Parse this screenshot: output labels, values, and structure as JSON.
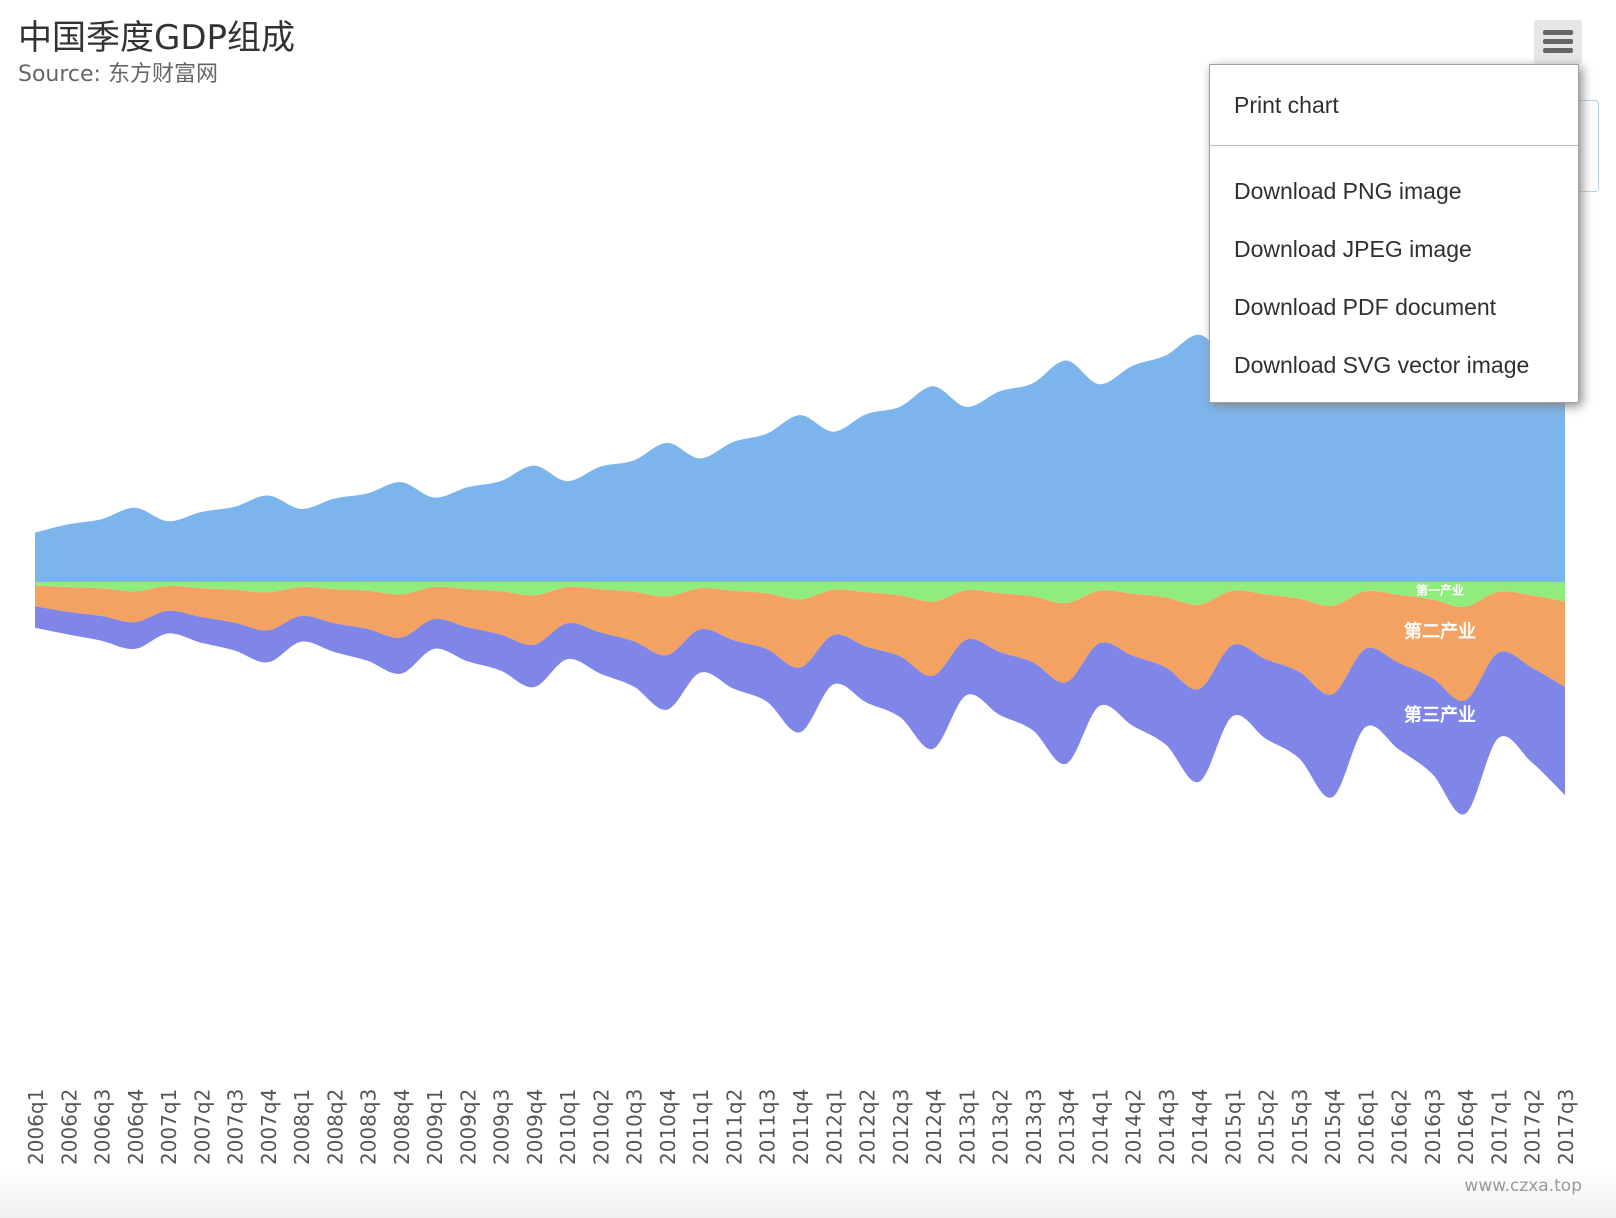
{
  "title": "中国季度GDP组成",
  "subtitle": "Source: 东方财富网",
  "menu": {
    "items": [
      "Print chart",
      "Download PNG image",
      "Download JPEG image",
      "Download PDF document",
      "Download SVG vector image"
    ]
  },
  "credits": "www.czxa.top",
  "colors": {
    "primary": "#7cb5ec",
    "secondary": "#f4a261",
    "tertiary": "#8085e8",
    "quaternary": "#90ed7d"
  },
  "chart_data": {
    "type": "area",
    "subtype": "streamgraph",
    "x": [
      "2006q1",
      "2006q2",
      "2006q3",
      "2006q4",
      "2007q1",
      "2007q2",
      "2007q3",
      "2007q4",
      "2008q1",
      "2008q2",
      "2008q3",
      "2008q4",
      "2009q1",
      "2009q2",
      "2009q3",
      "2009q4",
      "2010q1",
      "2010q2",
      "2010q3",
      "2010q4",
      "2011q1",
      "2011q2",
      "2011q3",
      "2011q4",
      "2012q1",
      "2012q2",
      "2012q3",
      "2012q4",
      "2013q1",
      "2013q2",
      "2013q3",
      "2013q4",
      "2014q1",
      "2014q2",
      "2014q3",
      "2014q4",
      "2015q1",
      "2015q2",
      "2015q3",
      "2015q4",
      "2016q1",
      "2016q2",
      "2016q3",
      "2016q4",
      "2017q1",
      "2017q2",
      "2017q3"
    ],
    "series": [
      {
        "name": "",
        "color": "#7cb5ec",
        "values": [
          48,
          56,
          61,
          72,
          59,
          68,
          73,
          84,
          71,
          81,
          86,
          97,
          82,
          92,
          98,
          113,
          98,
          112,
          118,
          135,
          120,
          136,
          144,
          162,
          146,
          163,
          170,
          190,
          170,
          185,
          193,
          215,
          192,
          210,
          220,
          240,
          216,
          234,
          244,
          260,
          240,
          256,
          266,
          285,
          262,
          278,
          290
        ]
      },
      {
        "name": "第一产业",
        "color": "#90ed7d",
        "values": [
          3.5,
          5,
          6,
          9,
          4,
          6,
          7.5,
          10,
          5,
          7,
          8.5,
          12,
          5,
          7,
          9,
          13,
          5,
          7,
          9.5,
          14,
          6,
          8.5,
          11,
          17,
          7.5,
          10,
          13,
          19,
          8,
          11,
          14,
          20.5,
          8.5,
          11.5,
          15,
          22,
          8.5,
          12,
          16,
          23,
          9,
          12.5,
          17,
          24,
          9.5,
          13,
          19
        ]
      },
      {
        "name": "第二产业",
        "color": "#f4a261",
        "values": [
          20,
          24,
          27,
          30,
          24,
          28,
          32,
          37,
          28,
          33,
          37,
          42,
          31,
          37,
          42,
          48,
          35,
          42,
          48,
          57,
          40,
          48,
          54,
          66,
          44,
          53,
          59,
          72,
          48,
          57,
          64,
          77,
          51,
          60,
          68,
          82,
          53,
          63,
          71,
          86,
          56,
          66,
          76,
          91,
          59,
          70,
          83
        ]
      },
      {
        "name": "第三产业",
        "color": "#8085e8",
        "values": [
          21,
          22,
          24,
          26,
          22,
          25,
          27,
          31,
          25,
          28,
          31,
          35,
          29,
          33,
          35,
          41,
          35,
          40,
          44,
          53,
          42,
          47,
          51,
          63,
          48,
          54,
          59,
          71,
          54,
          61,
          66,
          79,
          61,
          68,
          75,
          90,
          69,
          77,
          84,
          100,
          76,
          84,
          93,
          110,
          83,
          92,
          105
        ]
      }
    ],
    "xlabel": "",
    "ylabel": "",
    "grid": false,
    "legend": "none"
  }
}
